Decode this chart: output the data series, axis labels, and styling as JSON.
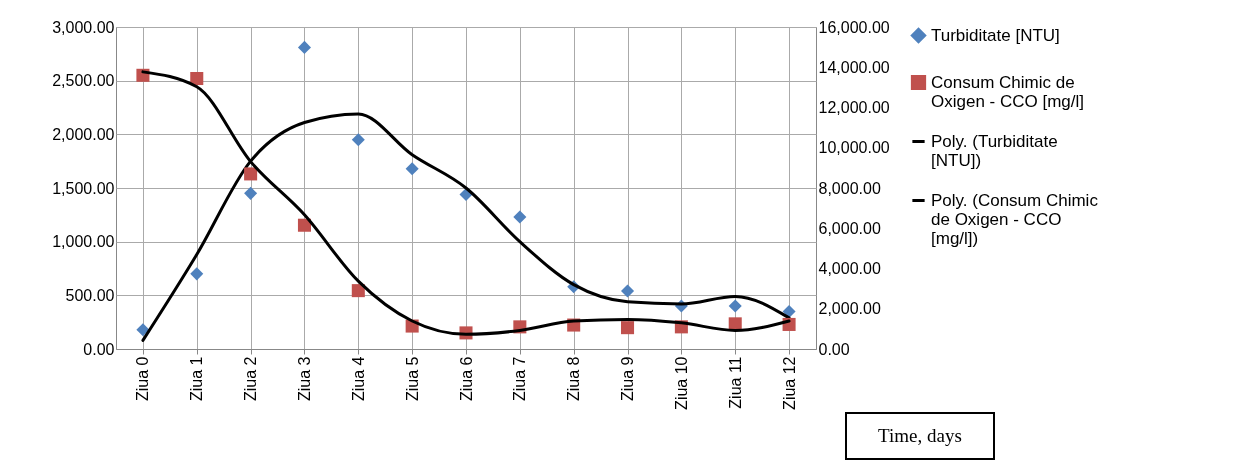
{
  "chart_data": {
    "type": "scatter",
    "xlabel": "Time, days",
    "categories": [
      "Ziua 0",
      "Ziua 1",
      "Ziua 2",
      "Ziua 3",
      "Ziua 4",
      "Ziua 5",
      "Ziua 6",
      "Ziua 7",
      "Ziua 8",
      "Ziua 9",
      "Ziua 10",
      "Ziua 11",
      "Ziua 12"
    ],
    "series": [
      {
        "name": "Turbiditate [NTU]",
        "marker": "diamond",
        "color": "#4f81bd",
        "axis": "y",
        "values": [
          180,
          700,
          1450,
          2810,
          1950,
          1680,
          1440,
          1230,
          580,
          540,
          400,
          400,
          350
        ]
      },
      {
        "name": "Consum Chimic de Oxigen - CCO [mg/l]",
        "marker": "square",
        "color": "#c0504d",
        "axis": "y2",
        "values": [
          13600,
          13440,
          8700,
          6150,
          2900,
          1140,
          800,
          1100,
          1190,
          1060,
          1100,
          1250,
          1220
        ]
      },
      {
        "name": "Poly. (Turbiditate [NTU])",
        "type": "line",
        "color": "#000000",
        "axis": "y",
        "values": [
          80,
          880,
          1750,
          2110,
          2190,
          1810,
          1500,
          1000,
          600,
          440,
          420,
          490,
          290
        ]
      },
      {
        "name": "Poly. (Consum Chimic de Oxigen - CCO [mg/l])",
        "type": "line",
        "color": "#000000",
        "axis": "y2",
        "values": [
          13770,
          13030,
          9310,
          6670,
          3370,
          1390,
          730,
          920,
          1390,
          1470,
          1300,
          920,
          1390
        ]
      }
    ],
    "ylim": [
      0,
      3000
    ],
    "yticks": [
      {
        "value": 0,
        "label": "0.00"
      },
      {
        "value": 500,
        "label": "500.00"
      },
      {
        "value": 1000,
        "label": "1,000.00"
      },
      {
        "value": 1500,
        "label": "1,500.00"
      },
      {
        "value": 2000,
        "label": "2,000.00"
      },
      {
        "value": 2500,
        "label": "2,500.00"
      },
      {
        "value": 3000,
        "label": "3,000.00"
      }
    ],
    "y2lim": [
      0,
      16000
    ],
    "y2ticks": [
      {
        "value": 0,
        "label": "0.00"
      },
      {
        "value": 2000,
        "label": "2,000.00"
      },
      {
        "value": 4000,
        "label": "4,000.00"
      },
      {
        "value": 6000,
        "label": "6,000.00"
      },
      {
        "value": 8000,
        "label": "8,000.00"
      },
      {
        "value": 10000,
        "label": "10,000.00"
      },
      {
        "value": 12000,
        "label": "12,000.00"
      },
      {
        "value": 14000,
        "label": "14,000.00"
      },
      {
        "value": 16000,
        "label": "16,000.00"
      }
    ],
    "grid": true,
    "legend": "right"
  }
}
